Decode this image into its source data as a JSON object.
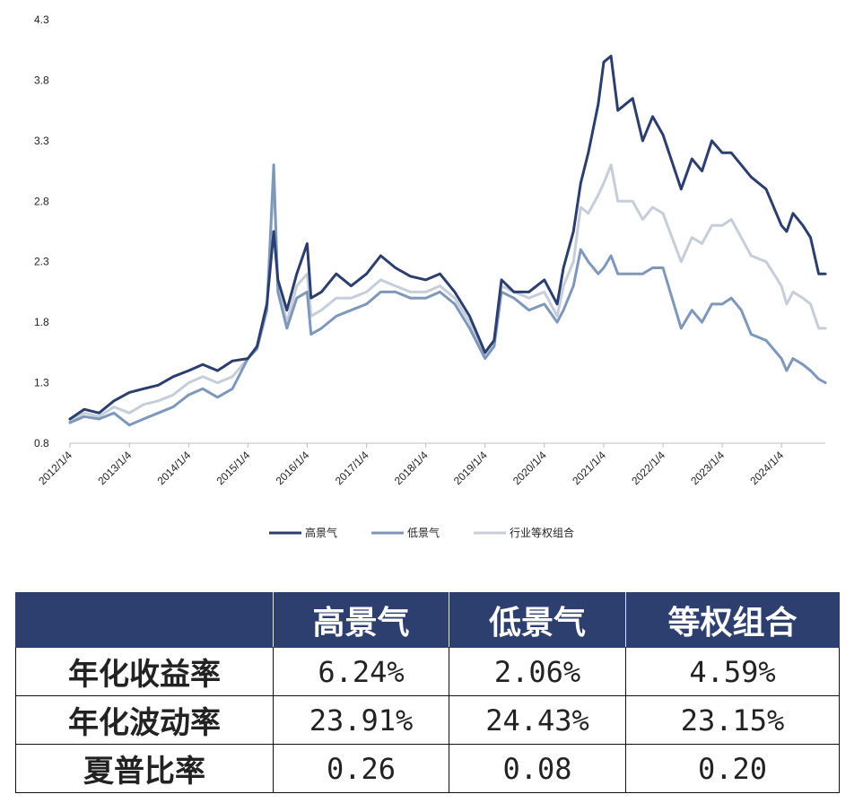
{
  "chart_data": {
    "type": "line",
    "title": "",
    "xlabel": "",
    "ylabel": "",
    "ylim": [
      0.8,
      4.3
    ],
    "y_ticks": [
      "0.8",
      "1.3",
      "1.8",
      "2.3",
      "2.8",
      "3.3",
      "3.8",
      "4.3"
    ],
    "x_ticks": [
      "2012/1/4",
      "2013/1/4",
      "2014/1/4",
      "2015/1/4",
      "2016/1/4",
      "2017/1/4",
      "2018/1/4",
      "2019/1/4",
      "2020/1/4",
      "2021/1/4",
      "2022/1/4",
      "2023/1/4",
      "2024/1/4"
    ],
    "x_range": [
      "2012/1/4",
      "2024/9/30"
    ],
    "grid": false,
    "legend_position": "bottom",
    "x": [
      "2012/1/4",
      "2012/4/1",
      "2012/7/1",
      "2012/10/1",
      "2013/1/4",
      "2013/4/1",
      "2013/7/1",
      "2013/10/1",
      "2014/1/4",
      "2014/4/1",
      "2014/7/1",
      "2014/10/1",
      "2015/1/4",
      "2015/3/1",
      "2015/5/1",
      "2015/6/12",
      "2015/7/8",
      "2015/9/1",
      "2015/11/1",
      "2016/1/4",
      "2016/1/28",
      "2016/4/1",
      "2016/7/1",
      "2016/10/1",
      "2017/1/4",
      "2017/4/1",
      "2017/7/1",
      "2017/10/1",
      "2018/1/4",
      "2018/4/1",
      "2018/7/1",
      "2018/10/1",
      "2019/1/4",
      "2019/3/1",
      "2019/4/15",
      "2019/7/1",
      "2019/10/1",
      "2020/1/4",
      "2020/3/23",
      "2020/5/1",
      "2020/7/1",
      "2020/8/15",
      "2020/10/1",
      "2020/12/1",
      "2021/1/4",
      "2021/2/18",
      "2021/4/1",
      "2021/7/1",
      "2021/9/1",
      "2021/11/1",
      "2022/1/4",
      "2022/4/26",
      "2022/7/1",
      "2022/9/1",
      "2022/11/1",
      "2023/1/4",
      "2023/3/1",
      "2023/5/1",
      "2023/7/1",
      "2023/10/1",
      "2024/1/4",
      "2024/2/5",
      "2024/3/15",
      "2024/5/15",
      "2024/7/1",
      "2024/8/20",
      "2024/9/30"
    ],
    "series": [
      {
        "name": "高景气",
        "color": "#2b3e6e",
        "values": [
          1.0,
          1.08,
          1.05,
          1.15,
          1.22,
          1.25,
          1.28,
          1.35,
          1.4,
          1.45,
          1.4,
          1.48,
          1.5,
          1.6,
          1.95,
          2.55,
          2.15,
          1.9,
          2.2,
          2.45,
          2.0,
          2.05,
          2.2,
          2.1,
          2.2,
          2.35,
          2.25,
          2.18,
          2.15,
          2.2,
          2.05,
          1.85,
          1.55,
          1.65,
          2.15,
          2.05,
          2.05,
          2.15,
          1.95,
          2.25,
          2.55,
          2.95,
          3.2,
          3.6,
          3.95,
          4.0,
          3.55,
          3.65,
          3.3,
          3.5,
          3.35,
          2.9,
          3.15,
          3.05,
          3.3,
          3.2,
          3.2,
          3.1,
          3.0,
          2.9,
          2.6,
          2.55,
          2.7,
          2.6,
          2.5,
          2.2,
          2.2
        ]
      },
      {
        "name": "低景气",
        "color": "#7e98bb",
        "values": [
          0.97,
          1.02,
          1.0,
          1.05,
          0.95,
          1.0,
          1.05,
          1.1,
          1.2,
          1.25,
          1.18,
          1.25,
          1.5,
          1.58,
          1.9,
          3.1,
          2.05,
          1.75,
          2.0,
          2.05,
          1.7,
          1.75,
          1.85,
          1.9,
          1.95,
          2.05,
          2.05,
          2.0,
          2.0,
          2.05,
          1.95,
          1.75,
          1.5,
          1.6,
          2.05,
          2.0,
          1.9,
          1.95,
          1.8,
          1.9,
          2.1,
          2.4,
          2.3,
          2.2,
          2.25,
          2.35,
          2.2,
          2.2,
          2.2,
          2.25,
          2.25,
          1.75,
          1.9,
          1.8,
          1.95,
          1.95,
          2.0,
          1.9,
          1.7,
          1.65,
          1.5,
          1.4,
          1.5,
          1.45,
          1.4,
          1.33,
          1.3
        ]
      },
      {
        "name": "行业等权组合",
        "color": "#c5ced9",
        "values": [
          0.98,
          1.05,
          1.02,
          1.1,
          1.05,
          1.12,
          1.15,
          1.2,
          1.3,
          1.35,
          1.3,
          1.35,
          1.5,
          1.6,
          1.92,
          3.0,
          2.1,
          1.8,
          2.1,
          2.2,
          1.85,
          1.9,
          2.0,
          2.0,
          2.05,
          2.15,
          2.1,
          2.05,
          2.05,
          2.1,
          2.0,
          1.8,
          1.52,
          1.62,
          2.1,
          2.05,
          2.0,
          2.05,
          1.85,
          2.1,
          2.3,
          2.75,
          2.7,
          2.85,
          2.95,
          3.1,
          2.8,
          2.8,
          2.65,
          2.75,
          2.7,
          2.3,
          2.5,
          2.45,
          2.6,
          2.6,
          2.65,
          2.5,
          2.35,
          2.3,
          2.1,
          1.95,
          2.05,
          2.0,
          1.95,
          1.75,
          1.75
        ]
      }
    ]
  },
  "table": {
    "header": [
      "",
      "高景气",
      "低景气",
      "等权组合"
    ],
    "rows": [
      {
        "label": "年化收益率",
        "values": [
          "6.24%",
          "2.06%",
          "4.59%"
        ]
      },
      {
        "label": "年化波动率",
        "values": [
          "23.91%",
          "24.43%",
          "23.15%"
        ]
      },
      {
        "label": "夏普比率",
        "values": [
          "0.26",
          "0.08",
          "0.20"
        ]
      }
    ]
  }
}
